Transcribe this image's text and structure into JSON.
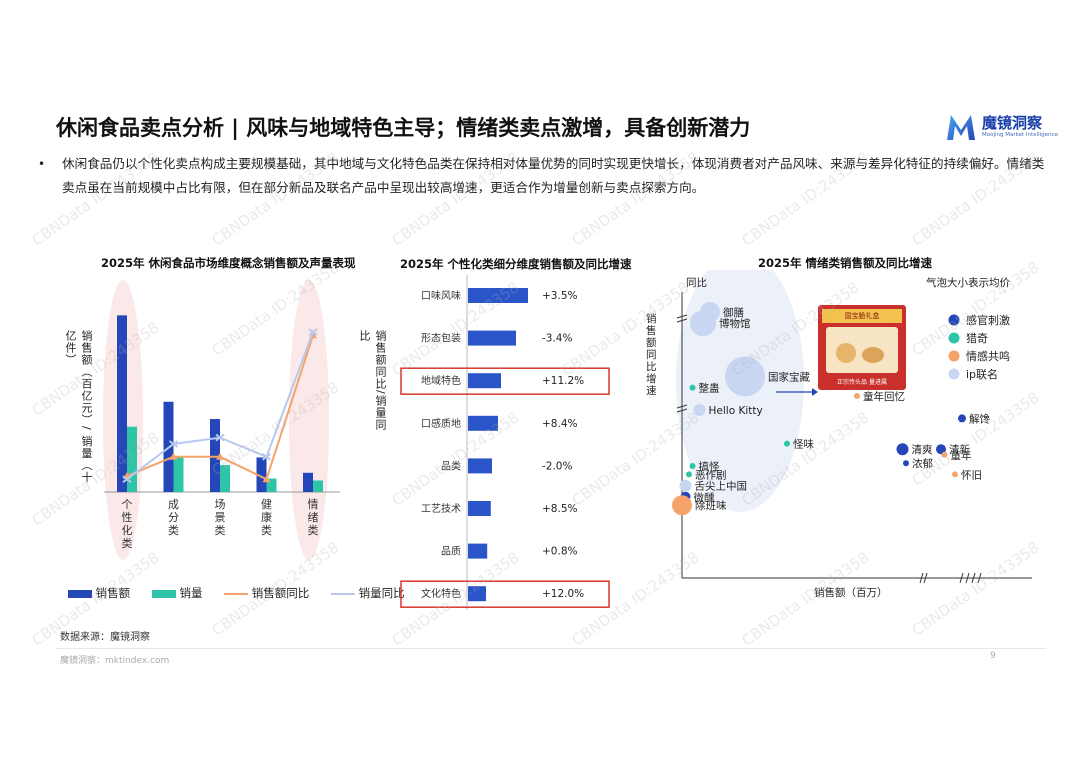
{
  "header": {
    "title": "休闲食品卖点分析 | 风味与地域特色主导；情绪类卖点激增，具备创新潜力",
    "logo_text": "魔镜洞察",
    "logo_sub": "Moojing Market Intelligence"
  },
  "bullet": {
    "marker": "•",
    "text": "休闲食品仍以个性化卖点构成主要规模基础，其中地域与文化特色品类在保持相对体量优势的同时实现更快增长，体现消费者对产品风味、来源与差异化特征的持续偏好。情绪类卖点虽在当前规模中占比有限，但在部分新品及联名产品中呈现出较高增速，更适合作为增量创新与卖点探索方向。"
  },
  "chart_data": [
    {
      "type": "bar",
      "title": "2025年 休闲食品市场维度概念销售额及声量表现",
      "ylabel": "销售额（百亿元）/ 销量（十亿件）",
      "y2label": "销售额同比/销量同比",
      "categories": [
        "个性化类",
        "成分类",
        "场景类",
        "健康类",
        "情绪类"
      ],
      "series": [
        {
          "name": "销售额",
          "kind": "bar",
          "color": "#2446b8",
          "values": [
            9.2,
            4.7,
            3.8,
            1.8,
            1.0
          ]
        },
        {
          "name": "销量",
          "kind": "bar",
          "color": "#2ec4a8",
          "values": [
            3.4,
            1.8,
            1.4,
            0.7,
            0.6
          ]
        },
        {
          "name": "销售额同比",
          "kind": "line",
          "color": "#f5a36b",
          "values": [
            0.25,
            0.55,
            0.55,
            0.2,
            2.45
          ]
        },
        {
          "name": "销量同比",
          "kind": "line",
          "color": "#b7c9ee",
          "values": [
            0.2,
            0.75,
            0.85,
            0.55,
            2.5
          ]
        }
      ],
      "ylim": [
        0,
        10
      ],
      "y2lim": [
        0,
        3
      ],
      "highlight_categories": [
        "个性化类",
        "情绪类"
      ]
    },
    {
      "type": "bar",
      "orientation": "horizontal",
      "title": "2025年 个性化类细分维度销售额及同比增速",
      "categories": [
        "口味风味",
        "形态包装",
        "地域特色",
        "口感质地",
        "品类",
        "工艺技术",
        "品质",
        "文化特色"
      ],
      "values": [
        10.0,
        8.0,
        5.5,
        5.0,
        4.0,
        3.8,
        3.2,
        3.0
      ],
      "growth_labels": [
        "+3.5%",
        "-3.4%",
        "+11.2%",
        "+8.4%",
        "-2.0%",
        "+8.5%",
        "+0.8%",
        "+12.0%"
      ],
      "highlight": [
        "地域特色",
        "文化特色"
      ],
      "xlim": [
        0,
        10
      ]
    },
    {
      "type": "scatter",
      "title": "2025年 情绪类销售额及同比增速",
      "xlabel": "销售额（百万）",
      "ylabel": "销售额同比增速",
      "top_label": "同比",
      "size_note": "气泡大小表示均价",
      "legend": [
        {
          "name": "感官刺激",
          "color": "#2446b8"
        },
        {
          "name": "猎奇",
          "color": "#2ec4a8"
        },
        {
          "name": "情感共鸣",
          "color": "#f5a36b"
        },
        {
          "name": "ip联名",
          "color": "#c8d6f2"
        }
      ],
      "points": [
        {
          "label": "御膳",
          "group": "ip联名",
          "x": 8,
          "y": 95,
          "size": 10
        },
        {
          "label": "博物馆",
          "group": "ip联名",
          "x": 6,
          "y": 91,
          "size": 13
        },
        {
          "label": "国家宝藏",
          "group": "ip联名",
          "x": 18,
          "y": 72,
          "size": 20
        },
        {
          "label": "整蛊",
          "group": "猎奇",
          "x": 3,
          "y": 68,
          "size": 3
        },
        {
          "label": "Hello Kitty",
          "group": "ip联名",
          "x": 5,
          "y": 60,
          "size": 6
        },
        {
          "label": "童年回忆",
          "group": "情感共鸣",
          "x": 50,
          "y": 65,
          "size": 3
        },
        {
          "label": "解馋",
          "group": "感官刺激",
          "x": 80,
          "y": 57,
          "size": 4
        },
        {
          "label": "怪味",
          "group": "猎奇",
          "x": 30,
          "y": 48,
          "size": 3
        },
        {
          "label": "清爽",
          "group": "感官刺激",
          "x": 63,
          "y": 46,
          "size": 6
        },
        {
          "label": "清新",
          "group": "感官刺激",
          "x": 74,
          "y": 46,
          "size": 5
        },
        {
          "label": "童年",
          "group": "情感共鸣",
          "x": 75,
          "y": 44,
          "size": 3
        },
        {
          "label": "浓郁",
          "group": "感官刺激",
          "x": 64,
          "y": 41,
          "size": 3
        },
        {
          "label": "怀旧",
          "group": "情感共鸣",
          "x": 78,
          "y": 37,
          "size": 3
        },
        {
          "label": "搞怪",
          "group": "猎奇",
          "x": 3,
          "y": 40,
          "size": 3
        },
        {
          "label": "恶作剧",
          "group": "猎奇",
          "x": 2,
          "y": 37,
          "size": 3
        },
        {
          "label": "舌尖上中国",
          "group": "ip联名",
          "x": 1,
          "y": 33,
          "size": 6
        },
        {
          "label": "微醺",
          "group": "感官刺激",
          "x": 1,
          "y": 29,
          "size": 5
        },
        {
          "label": "除班味",
          "group": "情感共鸣",
          "x": 0,
          "y": 26,
          "size": 10
        }
      ]
    }
  ],
  "legend1": [
    "销售额",
    "销量",
    "销售额同比",
    "销量同比"
  ],
  "product_image": {
    "banner": "国宝脆礼盒",
    "tag": "正宗传头品 量进属"
  },
  "source": "数据来源：魔镜洞察",
  "footer": "魔镜洞察：mktindex.com",
  "page_number": "9",
  "watermark": "CBNData ID:243358"
}
